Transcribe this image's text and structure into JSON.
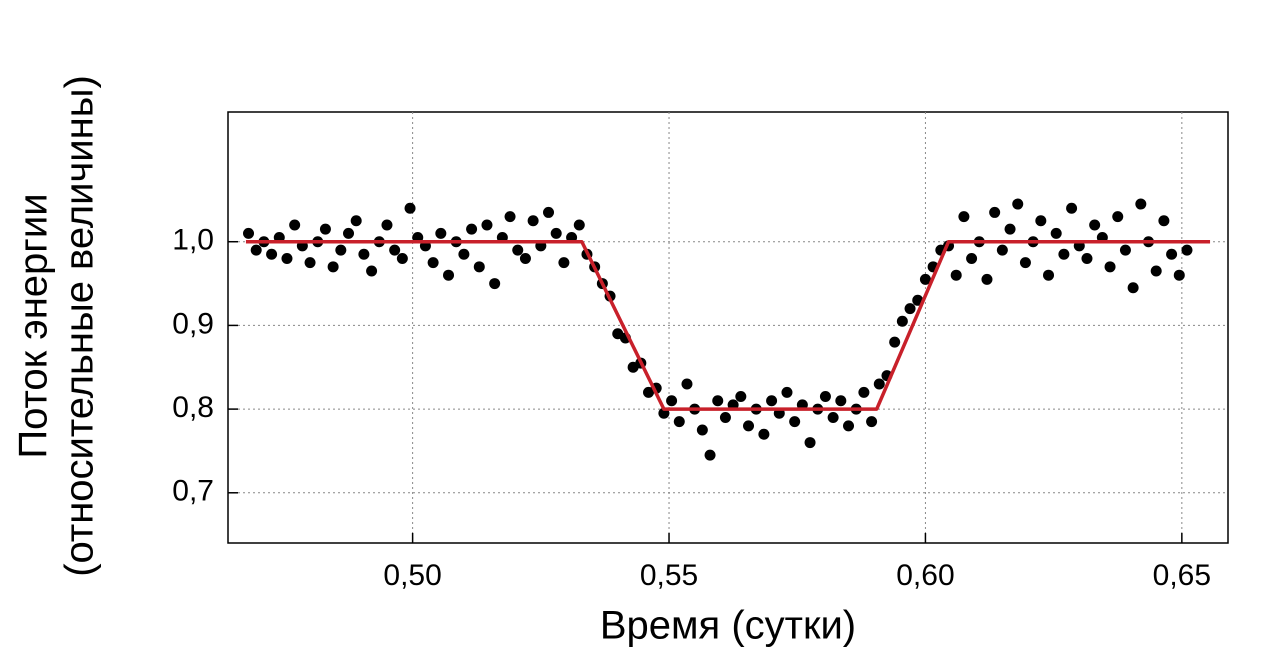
{
  "chart_data": {
    "type": "scatter",
    "xlabel": "Время (сутки)",
    "ylabel": [
      "Поток энергии",
      "(относительные величины)"
    ],
    "xlim": [
      0.464,
      0.659
    ],
    "ylim": [
      0.64,
      1.155
    ],
    "xticks": [
      {
        "value": 0.5,
        "label": "0,50"
      },
      {
        "value": 0.55,
        "label": "0,55"
      },
      {
        "value": 0.6,
        "label": "0,60"
      },
      {
        "value": 0.65,
        "label": "0,65"
      }
    ],
    "yticks": [
      {
        "value": 0.7,
        "label": "0,7"
      },
      {
        "value": 0.8,
        "label": "0,8"
      },
      {
        "value": 0.9,
        "label": "0,9"
      },
      {
        "value": 1.0,
        "label": "1,0"
      }
    ],
    "grid": true,
    "series": [
      {
        "type": "scatter",
        "color": "#000000",
        "x": [
          0.468,
          0.4695,
          0.471,
          0.4725,
          0.474,
          0.4755,
          0.477,
          0.4785,
          0.48,
          0.4815,
          0.483,
          0.4845,
          0.486,
          0.4875,
          0.489,
          0.4905,
          0.492,
          0.4935,
          0.495,
          0.4965,
          0.498,
          0.4995,
          0.501,
          0.5025,
          0.504,
          0.5055,
          0.507,
          0.5085,
          0.51,
          0.5115,
          0.513,
          0.5145,
          0.516,
          0.5175,
          0.519,
          0.5205,
          0.522,
          0.5235,
          0.525,
          0.5265,
          0.528,
          0.5295,
          0.531,
          0.5325,
          0.534,
          0.5355,
          0.537,
          0.5385,
          0.54,
          0.5415,
          0.543,
          0.5445,
          0.546,
          0.5475,
          0.549,
          0.5505,
          0.552,
          0.5535,
          0.555,
          0.5565,
          0.558,
          0.5595,
          0.561,
          0.5625,
          0.564,
          0.5655,
          0.567,
          0.5685,
          0.57,
          0.5715,
          0.573,
          0.5745,
          0.576,
          0.5775,
          0.579,
          0.5805,
          0.582,
          0.5835,
          0.585,
          0.5865,
          0.588,
          0.5895,
          0.591,
          0.5925,
          0.594,
          0.5955,
          0.597,
          0.5985,
          0.6,
          0.6015,
          0.603,
          0.6045,
          0.606,
          0.6075,
          0.609,
          0.6105,
          0.612,
          0.6135,
          0.615,
          0.6165,
          0.618,
          0.6195,
          0.621,
          0.6225,
          0.624,
          0.6255,
          0.627,
          0.6285,
          0.63,
          0.6315,
          0.633,
          0.6345,
          0.636,
          0.6375,
          0.639,
          0.6405,
          0.642,
          0.6435,
          0.645,
          0.6465,
          0.648,
          0.6495,
          0.651
        ],
        "values": [
          1.01,
          0.99,
          1.0,
          0.985,
          1.005,
          0.98,
          1.02,
          0.995,
          0.975,
          1.0,
          1.015,
          0.97,
          0.99,
          1.01,
          1.025,
          0.985,
          0.965,
          1.0,
          1.02,
          0.99,
          0.98,
          1.04,
          1.005,
          0.995,
          0.975,
          1.01,
          0.96,
          1.0,
          0.985,
          1.015,
          0.97,
          1.02,
          0.95,
          1.005,
          1.03,
          0.99,
          0.98,
          1.025,
          0.995,
          1.035,
          1.01,
          0.975,
          1.005,
          1.02,
          0.985,
          0.97,
          0.95,
          0.935,
          0.89,
          0.885,
          0.85,
          0.855,
          0.82,
          0.825,
          0.795,
          0.81,
          0.785,
          0.83,
          0.8,
          0.775,
          0.745,
          0.81,
          0.79,
          0.805,
          0.815,
          0.78,
          0.8,
          0.77,
          0.81,
          0.795,
          0.82,
          0.785,
          0.805,
          0.76,
          0.8,
          0.815,
          0.79,
          0.81,
          0.78,
          0.8,
          0.82,
          0.785,
          0.83,
          0.84,
          0.88,
          0.905,
          0.92,
          0.93,
          0.955,
          0.97,
          0.99,
          0.995,
          0.96,
          1.03,
          0.98,
          1.0,
          0.955,
          1.035,
          0.99,
          1.015,
          1.045,
          0.975,
          1.0,
          1.025,
          0.96,
          1.01,
          0.985,
          1.04,
          0.995,
          0.98,
          1.02,
          1.005,
          0.97,
          1.03,
          0.99,
          0.945,
          1.045,
          1.0,
          0.965,
          1.025,
          0.985,
          0.96,
          0.99
        ]
      },
      {
        "type": "line",
        "color": "#c8202a",
        "x": [
          0.4675,
          0.533,
          0.549,
          0.5905,
          0.6045,
          0.6555
        ],
        "values": [
          1.0,
          1.0,
          0.8,
          0.8,
          1.0,
          1.0
        ]
      }
    ]
  }
}
